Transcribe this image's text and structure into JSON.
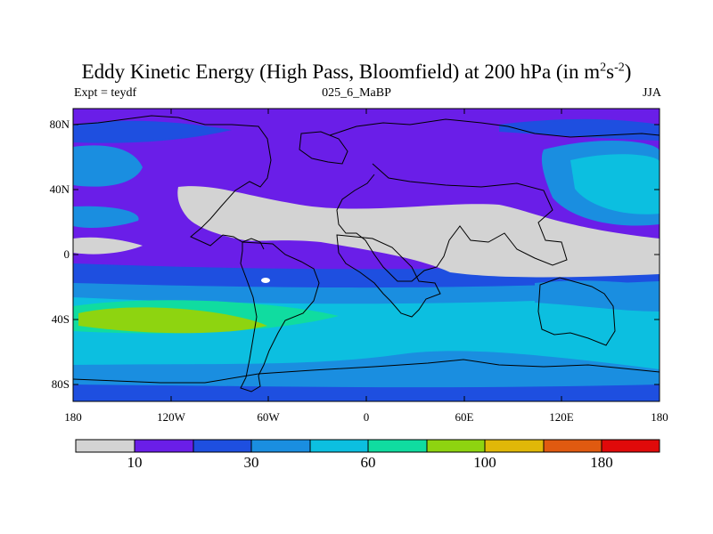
{
  "title": {
    "main": "Eddy Kinetic Energy (High Pass, Bloomfield) at 200 hPa (in m",
    "sup1": "2",
    "mid": "s",
    "sup2": "-2",
    "tail": ")"
  },
  "subtitle": {
    "left": "Expt = teydf",
    "center": "025_6_MaBP",
    "right": "JJA"
  },
  "axes": {
    "lat_labels": [
      "80N",
      "40N",
      "0",
      "40S",
      "80S"
    ],
    "lon_labels": [
      "180",
      "120W",
      "60W",
      "0",
      "60E",
      "120E",
      "180"
    ]
  },
  "colorbar": {
    "colors": [
      "#d3d3d3",
      "#6a1ee8",
      "#1e4fe0",
      "#1a8ee0",
      "#0cbfe0",
      "#10dca0",
      "#8ed410",
      "#e0b808",
      "#e05a10",
      "#e00a0a"
    ],
    "labels": [
      "10",
      "30",
      "60",
      "100",
      "180"
    ]
  },
  "colors": {
    "land_outline": "#000000",
    "frame": "#000000"
  }
}
